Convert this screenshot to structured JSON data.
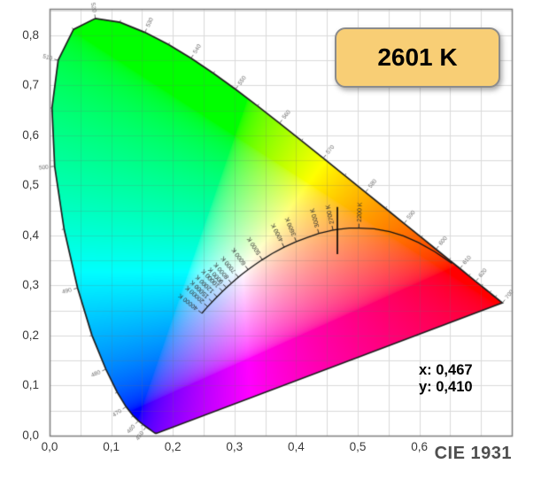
{
  "badge": {
    "label": "2601 K",
    "bg_color": "#F8CE75",
    "border_color": "#8C8C8C"
  },
  "readout": {
    "x": "x: 0,467",
    "y": "y: 0,410"
  },
  "caption": {
    "label": "CIE 1931"
  },
  "chart_data": {
    "type": "area",
    "diagram": "CIE 1931 xy chromaticity diagram",
    "title": "CIE 1931",
    "xlabel": "",
    "ylabel": "",
    "xlim": [
      0,
      0.75
    ],
    "ylim": [
      0,
      0.853
    ],
    "grid": true,
    "grid_step": 0.05,
    "colors": {
      "grid": "#dadada",
      "frame": "#7d7d7d",
      "outline": "#1c1c1c",
      "planckian": "#141414"
    },
    "x_ticks": [
      {
        "v": 0.0,
        "label": "0,0"
      },
      {
        "v": 0.1,
        "label": "0,1"
      },
      {
        "v": 0.2,
        "label": "0,2"
      },
      {
        "v": 0.3,
        "label": "0,3"
      },
      {
        "v": 0.4,
        "label": "0,4"
      },
      {
        "v": 0.5,
        "label": "0,5"
      },
      {
        "v": 0.6,
        "label": "0,6"
      }
    ],
    "y_ticks": [
      {
        "v": 0.0,
        "label": "0,0"
      },
      {
        "v": 0.1,
        "label": "0,1"
      },
      {
        "v": 0.2,
        "label": "0,2"
      },
      {
        "v": 0.3,
        "label": "0,3"
      },
      {
        "v": 0.4,
        "label": "0,4"
      },
      {
        "v": 0.5,
        "label": "0,5"
      },
      {
        "v": 0.6,
        "label": "0,6"
      },
      {
        "v": 0.7,
        "label": "0,7"
      },
      {
        "v": 0.8,
        "label": "0,8"
      }
    ],
    "marker": {
      "x": 0.467,
      "y": 0.41,
      "half_height": 0.047,
      "temperature": "2601 K"
    },
    "spectral_locus": [
      [
        380,
        0.1741,
        0.005
      ],
      [
        385,
        0.174,
        0.005
      ],
      [
        390,
        0.1738,
        0.0049
      ],
      [
        395,
        0.1736,
        0.0049
      ],
      [
        400,
        0.1733,
        0.0048
      ],
      [
        405,
        0.173,
        0.0048
      ],
      [
        410,
        0.1726,
        0.0048
      ],
      [
        415,
        0.1721,
        0.0048
      ],
      [
        420,
        0.1714,
        0.0051
      ],
      [
        425,
        0.1703,
        0.0058
      ],
      [
        430,
        0.1689,
        0.0069
      ],
      [
        435,
        0.1669,
        0.0086
      ],
      [
        440,
        0.1644,
        0.0109
      ],
      [
        445,
        0.1611,
        0.0138
      ],
      [
        450,
        0.1566,
        0.0177
      ],
      [
        455,
        0.151,
        0.0227
      ],
      [
        460,
        0.144,
        0.0297
      ],
      [
        465,
        0.1355,
        0.0399
      ],
      [
        470,
        0.1241,
        0.0578
      ],
      [
        475,
        0.1096,
        0.0868
      ],
      [
        480,
        0.0913,
        0.1327
      ],
      [
        485,
        0.0687,
        0.2007
      ],
      [
        490,
        0.0454,
        0.295
      ],
      [
        495,
        0.0235,
        0.4127
      ],
      [
        500,
        0.0082,
        0.5384
      ],
      [
        505,
        0.0039,
        0.6548
      ],
      [
        510,
        0.0139,
        0.7502
      ],
      [
        515,
        0.0389,
        0.812
      ],
      [
        520,
        0.0743,
        0.8338
      ],
      [
        525,
        0.1142,
        0.8262
      ],
      [
        530,
        0.1547,
        0.8059
      ],
      [
        535,
        0.1929,
        0.7816
      ],
      [
        540,
        0.2296,
        0.7543
      ],
      [
        545,
        0.2658,
        0.7243
      ],
      [
        550,
        0.3016,
        0.6923
      ],
      [
        555,
        0.3373,
        0.6589
      ],
      [
        560,
        0.3731,
        0.6245
      ],
      [
        565,
        0.4087,
        0.5896
      ],
      [
        570,
        0.4441,
        0.5547
      ],
      [
        575,
        0.4788,
        0.5202
      ],
      [
        580,
        0.5125,
        0.4866
      ],
      [
        585,
        0.5448,
        0.4544
      ],
      [
        590,
        0.5752,
        0.4242
      ],
      [
        595,
        0.6029,
        0.3965
      ],
      [
        600,
        0.627,
        0.3725
      ],
      [
        605,
        0.6482,
        0.3514
      ],
      [
        610,
        0.6658,
        0.334
      ],
      [
        615,
        0.6801,
        0.3197
      ],
      [
        620,
        0.6915,
        0.3083
      ],
      [
        625,
        0.7006,
        0.2993
      ],
      [
        630,
        0.7079,
        0.292
      ],
      [
        635,
        0.714,
        0.2859
      ],
      [
        640,
        0.719,
        0.2809
      ],
      [
        645,
        0.723,
        0.277
      ],
      [
        650,
        0.726,
        0.274
      ],
      [
        655,
        0.7283,
        0.2717
      ],
      [
        660,
        0.73,
        0.27
      ],
      [
        665,
        0.7311,
        0.2689
      ],
      [
        670,
        0.732,
        0.268
      ],
      [
        675,
        0.7327,
        0.2673
      ],
      [
        680,
        0.7334,
        0.2666
      ],
      [
        685,
        0.734,
        0.266
      ],
      [
        690,
        0.7344,
        0.2656
      ],
      [
        695,
        0.7346,
        0.2654
      ],
      [
        700,
        0.7347,
        0.2653
      ]
    ],
    "wavelength_ticks": [
      {
        "wl": 450,
        "label": "450"
      },
      {
        "wl": 460,
        "label": "460"
      },
      {
        "wl": 470,
        "label": "470"
      },
      {
        "wl": 480,
        "label": "480"
      },
      {
        "wl": 490,
        "label": "490"
      },
      {
        "wl": 500,
        "label": "500"
      },
      {
        "wl": 510,
        "label": "510"
      },
      {
        "wl": 520,
        "label": "520"
      },
      {
        "wl": 530,
        "label": "530"
      },
      {
        "wl": 540,
        "label": "540"
      },
      {
        "wl": 550,
        "label": "550"
      },
      {
        "wl": 560,
        "label": "560"
      },
      {
        "wl": 570,
        "label": "570"
      },
      {
        "wl": 580,
        "label": "580"
      },
      {
        "wl": 590,
        "label": "590"
      },
      {
        "wl": 600,
        "label": "600"
      },
      {
        "wl": 610,
        "label": "610"
      },
      {
        "wl": 620,
        "label": "620"
      },
      {
        "wl": 700,
        "label": "700"
      }
    ],
    "minor_tick_range": [
      450,
      645
    ],
    "planckian_locus": [
      [
        1000,
        0.6528,
        0.3444
      ],
      [
        1200,
        0.6249,
        0.3676
      ],
      [
        1400,
        0.5984,
        0.3859
      ],
      [
        1600,
        0.574,
        0.3992
      ],
      [
        1800,
        0.5519,
        0.4077
      ],
      [
        2000,
        0.5267,
        0.4133
      ],
      [
        2200,
        0.5018,
        0.4147
      ],
      [
        2400,
        0.4861,
        0.4146
      ],
      [
        2601,
        0.467,
        0.4123
      ],
      [
        2700,
        0.4599,
        0.4106
      ],
      [
        3000,
        0.4369,
        0.4041
      ],
      [
        3300,
        0.4186,
        0.396
      ],
      [
        3600,
        0.4003,
        0.3879
      ],
      [
        4000,
        0.3805,
        0.3768
      ],
      [
        4500,
        0.3608,
        0.3636
      ],
      [
        5000,
        0.3451,
        0.3516
      ],
      [
        5500,
        0.3325,
        0.3411
      ],
      [
        6000,
        0.3221,
        0.3318
      ],
      [
        6500,
        0.3135,
        0.3237
      ],
      [
        7000,
        0.3064,
        0.3166
      ],
      [
        8000,
        0.2952,
        0.3048
      ],
      [
        9000,
        0.2869,
        0.2956
      ],
      [
        10000,
        0.2807,
        0.2884
      ],
      [
        12000,
        0.2717,
        0.2773
      ],
      [
        15000,
        0.2637,
        0.2673
      ],
      [
        20000,
        0.2565,
        0.2577
      ],
      [
        30000,
        0.2501,
        0.2489
      ],
      [
        40000,
        0.2472,
        0.2444
      ]
    ],
    "temperature_ticks": [
      {
        "t": 2200,
        "label": "2200 K"
      },
      {
        "t": 2700,
        "label": "2700 K"
      },
      {
        "t": 3000,
        "label": "3000 K"
      },
      {
        "t": 3600,
        "label": "3600 K"
      },
      {
        "t": 4000,
        "label": "4000 K"
      },
      {
        "t": 5000,
        "label": "5000 K"
      },
      {
        "t": 6000,
        "label": "6000 K"
      },
      {
        "t": 7000,
        "label": "7000 K"
      },
      {
        "t": 8000,
        "label": "8000 K"
      },
      {
        "t": 9000,
        "label": "9000 K"
      },
      {
        "t": 10000,
        "label": "10000 K"
      },
      {
        "t": 12000,
        "label": "12000 K"
      },
      {
        "t": 15000,
        "label": "15000 K"
      },
      {
        "t": 20000,
        "label": "20000 K"
      },
      {
        "t": 40000,
        "label": "40000 K"
      }
    ]
  }
}
